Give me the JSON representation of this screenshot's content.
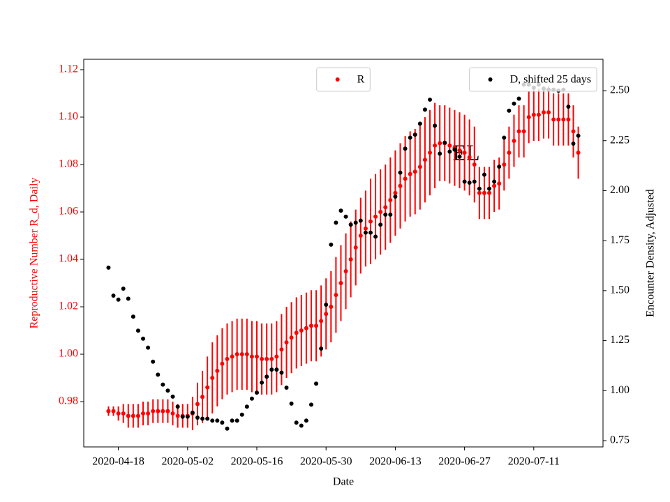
{
  "chart_data": {
    "type": "scatter",
    "xlabel": "Date",
    "ylabel": "Reproductive Number R_d, Daily",
    "y2label": "Encounter Density, Adjusted",
    "annotation": "EL",
    "x": [
      "2020-04-16",
      "2020-04-17",
      "2020-04-18",
      "2020-04-19",
      "2020-04-20",
      "2020-04-21",
      "2020-04-22",
      "2020-04-23",
      "2020-04-24",
      "2020-04-25",
      "2020-04-26",
      "2020-04-27",
      "2020-04-28",
      "2020-04-29",
      "2020-04-30",
      "2020-05-01",
      "2020-05-02",
      "2020-05-03",
      "2020-05-04",
      "2020-05-05",
      "2020-05-06",
      "2020-05-07",
      "2020-05-08",
      "2020-05-09",
      "2020-05-10",
      "2020-05-11",
      "2020-05-12",
      "2020-05-13",
      "2020-05-14",
      "2020-05-15",
      "2020-05-16",
      "2020-05-17",
      "2020-05-18",
      "2020-05-19",
      "2020-05-20",
      "2020-05-21",
      "2020-05-22",
      "2020-05-23",
      "2020-05-24",
      "2020-05-25",
      "2020-05-26",
      "2020-05-27",
      "2020-05-28",
      "2020-05-29",
      "2020-05-30",
      "2020-05-31",
      "2020-06-01",
      "2020-06-02",
      "2020-06-03",
      "2020-06-04",
      "2020-06-05",
      "2020-06-06",
      "2020-06-07",
      "2020-06-08",
      "2020-06-09",
      "2020-06-10",
      "2020-06-11",
      "2020-06-12",
      "2020-06-13",
      "2020-06-14",
      "2020-06-15",
      "2020-06-16",
      "2020-06-17",
      "2020-06-18",
      "2020-06-19",
      "2020-06-20",
      "2020-06-21",
      "2020-06-22",
      "2020-06-23",
      "2020-06-24",
      "2020-06-25",
      "2020-06-26",
      "2020-06-27",
      "2020-06-28",
      "2020-06-29",
      "2020-06-30",
      "2020-07-01",
      "2020-07-02",
      "2020-07-03",
      "2020-07-04",
      "2020-07-05",
      "2020-07-06",
      "2020-07-07",
      "2020-07-08",
      "2020-07-09",
      "2020-07-10",
      "2020-07-11",
      "2020-07-12",
      "2020-07-13",
      "2020-07-14",
      "2020-07-15",
      "2020-07-16",
      "2020-07-17",
      "2020-07-18",
      "2020-07-19",
      "2020-07-20"
    ],
    "series": [
      {
        "name": "R",
        "color": "#ff0000",
        "legend_loc": "upper center",
        "values": [
          0.976,
          0.976,
          0.975,
          0.975,
          0.974,
          0.974,
          0.974,
          0.975,
          0.975,
          0.976,
          0.976,
          0.976,
          0.976,
          0.975,
          0.974,
          0.974,
          0.974,
          0.975,
          0.979,
          0.982,
          0.986,
          0.99,
          0.993,
          0.996,
          0.998,
          0.999,
          1.0,
          1.0,
          1.0,
          0.999,
          0.999,
          0.998,
          0.998,
          0.998,
          0.999,
          1.002,
          1.005,
          1.007,
          1.009,
          1.01,
          1.011,
          1.012,
          1.012,
          1.014,
          1.017,
          1.02,
          1.025,
          1.03,
          1.035,
          1.04,
          1.045,
          1.05,
          1.053,
          1.056,
          1.058,
          1.06,
          1.062,
          1.065,
          1.068,
          1.071,
          1.074,
          1.076,
          1.077,
          1.079,
          1.082,
          1.085,
          1.088,
          1.089,
          1.089,
          1.088,
          1.087,
          1.086,
          1.085,
          1.083,
          1.08,
          1.068,
          1.068,
          1.068,
          1.071,
          1.072,
          1.08,
          1.085,
          1.09,
          1.094,
          1.094,
          1.1,
          1.101,
          1.101,
          1.102,
          1.102,
          1.099,
          1.099,
          1.099,
          1.099,
          1.094,
          1.085
        ],
        "errors": [
          0.002,
          0.002,
          0.003,
          0.004,
          0.005,
          0.005,
          0.005,
          0.005,
          0.005,
          0.005,
          0.005,
          0.005,
          0.005,
          0.005,
          0.005,
          0.005,
          0.005,
          0.007,
          0.009,
          0.011,
          0.013,
          0.015,
          0.015,
          0.015,
          0.015,
          0.015,
          0.015,
          0.015,
          0.015,
          0.015,
          0.015,
          0.015,
          0.015,
          0.015,
          0.015,
          0.015,
          0.015,
          0.015,
          0.015,
          0.015,
          0.015,
          0.015,
          0.015,
          0.015,
          0.015,
          0.015,
          0.016,
          0.016,
          0.016,
          0.016,
          0.016,
          0.016,
          0.016,
          0.018,
          0.018,
          0.018,
          0.018,
          0.018,
          0.018,
          0.018,
          0.018,
          0.018,
          0.018,
          0.018,
          0.018,
          0.018,
          0.018,
          0.016,
          0.016,
          0.016,
          0.016,
          0.016,
          0.016,
          0.016,
          0.016,
          0.011,
          0.011,
          0.011,
          0.011,
          0.011,
          0.011,
          0.011,
          0.011,
          0.011,
          0.011,
          0.011,
          0.011,
          0.011,
          0.011,
          0.011,
          0.011,
          0.011,
          0.011,
          0.011,
          0.011,
          0.011
        ]
      },
      {
        "name": "D, shifted 25 days",
        "color": "#000000",
        "axis": "y2",
        "legend_loc": "upper right",
        "values": [
          1.615,
          1.475,
          1.455,
          1.51,
          1.46,
          1.37,
          1.3,
          1.26,
          1.215,
          1.145,
          1.08,
          1.03,
          1.0,
          0.97,
          0.92,
          0.87,
          0.87,
          0.89,
          0.865,
          0.86,
          0.86,
          0.85,
          0.85,
          0.84,
          0.81,
          0.85,
          0.85,
          0.88,
          0.92,
          0.96,
          0.99,
          1.04,
          1.07,
          1.105,
          1.105,
          1.09,
          1.015,
          0.935,
          0.84,
          0.825,
          0.85,
          0.93,
          1.035,
          1.21,
          1.43,
          1.73,
          1.84,
          1.9,
          1.87,
          1.83,
          1.84,
          1.85,
          1.79,
          1.79,
          1.77,
          1.83,
          1.88,
          1.88,
          1.97,
          2.09,
          2.21,
          2.265,
          2.28,
          2.335,
          2.405,
          2.455,
          2.325,
          2.185,
          2.24,
          2.195,
          2.205,
          2.17,
          2.045,
          2.04,
          2.045,
          2.01,
          2.08,
          2.01,
          2.045,
          2.12,
          2.265,
          2.4,
          2.435,
          2.46,
          2.53,
          2.53,
          2.515,
          2.53,
          2.51,
          2.505,
          2.505,
          2.5,
          2.505,
          2.42,
          2.235,
          2.275
        ]
      }
    ],
    "xlim": [
      "2020-04-11",
      "2020-07-25"
    ],
    "xticks": [
      "2020-04-18",
      "2020-05-02",
      "2020-05-16",
      "2020-05-30",
      "2020-06-13",
      "2020-06-27",
      "2020-07-11"
    ],
    "ylim": [
      0.9609,
      1.1244
    ],
    "yticks": [
      0.98,
      {
        "value": 1.0,
        "label": "1.00"
      },
      1.02,
      1.04,
      1.06,
      1.08,
      {
        "value": 1.1,
        "label": "1.10"
      },
      1.12
    ],
    "y2lim": [
      0.7186,
      2.657
    ],
    "y2ticks": [
      0.75,
      {
        "value": 1.0,
        "label": "1.00"
      },
      1.25,
      {
        "value": 1.5,
        "label": "1.50"
      },
      1.75,
      {
        "value": 2.0,
        "label": "2.00"
      },
      2.25,
      {
        "value": 2.5,
        "label": "2.50"
      }
    ]
  }
}
